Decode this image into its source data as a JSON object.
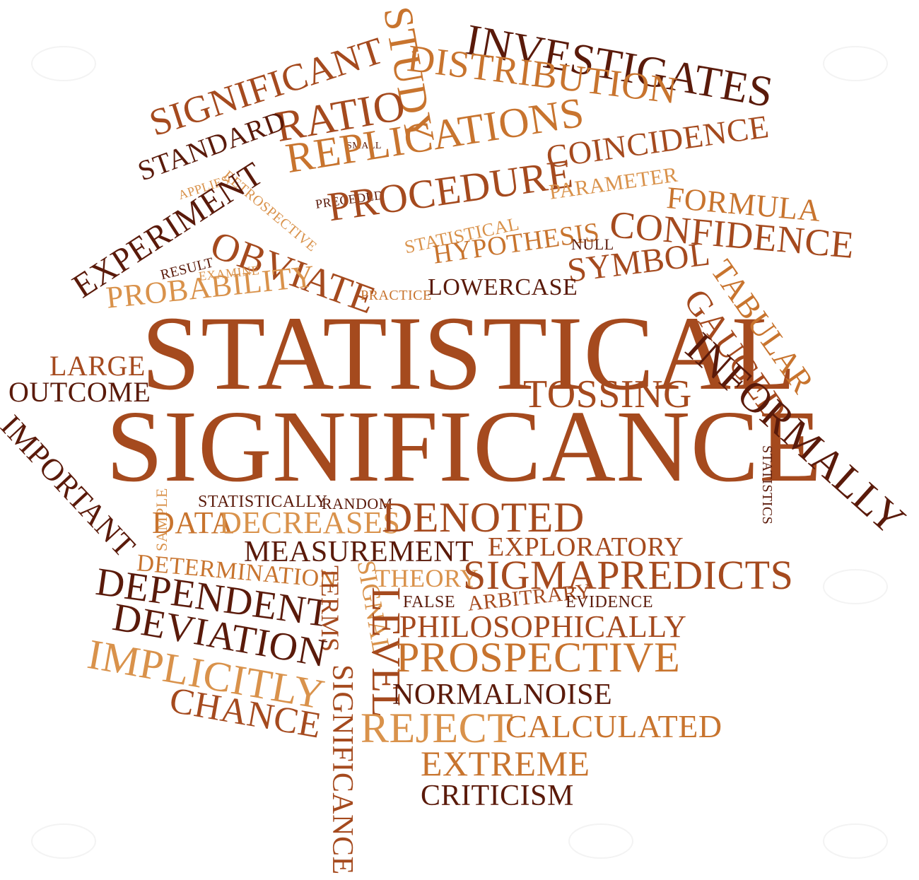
{
  "colors": {
    "dark": "#5a1a0a",
    "rust": "#a54a1e",
    "orange": "#c8742e",
    "light": "#d9924b",
    "tan": "#c98b4f"
  },
  "words": [
    {
      "text": "STATISTICAL",
      "color": "rust"
    },
    {
      "text": "SIGNIFICANCE",
      "color": "rust"
    },
    {
      "text": "INVESTIGATES",
      "color": "dark"
    },
    {
      "text": "DISTRIBUTION",
      "color": "orange"
    },
    {
      "text": "STUDY",
      "color": "orange"
    },
    {
      "text": "SIGNIFICANT",
      "color": "rust"
    },
    {
      "text": "RATIO",
      "color": "rust"
    },
    {
      "text": "STANDARD",
      "color": "dark"
    },
    {
      "text": "SMALL",
      "color": "dark"
    },
    {
      "text": "REPLICATIONS",
      "color": "orange"
    },
    {
      "text": "COINCIDENCE",
      "color": "rust"
    },
    {
      "text": "APPLIES",
      "color": "light"
    },
    {
      "text": "RETROSPECTIVE",
      "color": "light"
    },
    {
      "text": "PRECEDED",
      "color": "dark"
    },
    {
      "text": "PROCEDURE",
      "color": "rust"
    },
    {
      "text": "PARAMETER",
      "color": "light"
    },
    {
      "text": "FORMULA",
      "color": "orange"
    },
    {
      "text": "EXPERIMENT",
      "color": "dark"
    },
    {
      "text": "CONFIDENCE",
      "color": "rust"
    },
    {
      "text": "OBVIATE",
      "color": "rust"
    },
    {
      "text": "STATISTICAL",
      "color": "light"
    },
    {
      "text": "HYPOTHESIS",
      "color": "orange"
    },
    {
      "text": "NULL",
      "color": "dark"
    },
    {
      "text": "RESULT",
      "color": "dark"
    },
    {
      "text": "EXAMINE",
      "color": "light"
    },
    {
      "text": "SYMBOL",
      "color": "rust"
    },
    {
      "text": "TABULAR",
      "color": "orange"
    },
    {
      "text": "PROBABILITY",
      "color": "light"
    },
    {
      "text": "PRACTICE",
      "color": "orange"
    },
    {
      "text": "LOWERCASE",
      "color": "dark"
    },
    {
      "text": "GAUGED",
      "color": "rust"
    },
    {
      "text": "INFORMALLY",
      "color": "dark"
    },
    {
      "text": "LARGE",
      "color": "rust"
    },
    {
      "text": "OUTCOME",
      "color": "dark"
    },
    {
      "text": "TOSSING",
      "color": "rust"
    },
    {
      "text": "IMPORTANT",
      "color": "dark"
    },
    {
      "text": "STATISTICS",
      "color": "dark"
    },
    {
      "text": "STATISTICALLY",
      "color": "dark"
    },
    {
      "text": "RANDOM",
      "color": "dark"
    },
    {
      "text": "SAMPLE",
      "color": "light"
    },
    {
      "text": "DATA",
      "color": "orange"
    },
    {
      "text": "DECREASES",
      "color": "light"
    },
    {
      "text": "DENOTED",
      "color": "rust"
    },
    {
      "text": "MEASUREMENT",
      "color": "dark"
    },
    {
      "text": "EXPLORATORY",
      "color": "rust"
    },
    {
      "text": "DETERMINATION",
      "color": "orange"
    },
    {
      "text": "THEORY",
      "color": "light"
    },
    {
      "text": "SIGMAPREDICTS",
      "color": "rust"
    },
    {
      "text": "DEPENDENT",
      "color": "dark"
    },
    {
      "text": "TERMS",
      "color": "rust"
    },
    {
      "text": "SIGNAL",
      "color": "light"
    },
    {
      "text": "FALSE",
      "color": "dark"
    },
    {
      "text": "ARBITRARY",
      "color": "rust"
    },
    {
      "text": "EVIDENCE",
      "color": "dark"
    },
    {
      "text": "DEVIATION",
      "color": "dark"
    },
    {
      "text": "LEVEL",
      "color": "rust"
    },
    {
      "text": "PHILOSOPHICALLY",
      "color": "rust"
    },
    {
      "text": "IMPLICITLY",
      "color": "light"
    },
    {
      "text": "PROSPECTIVE",
      "color": "orange"
    },
    {
      "text": "SIGNIFICANCE",
      "color": "rust"
    },
    {
      "text": "NORMALNOISE",
      "color": "dark"
    },
    {
      "text": "CHANCE",
      "color": "rust"
    },
    {
      "text": "REJECT",
      "color": "light"
    },
    {
      "text": "CALCULATED",
      "color": "orange"
    },
    {
      "text": "EXTREME",
      "color": "orange"
    },
    {
      "text": "CRITICISM",
      "color": "dark"
    }
  ]
}
